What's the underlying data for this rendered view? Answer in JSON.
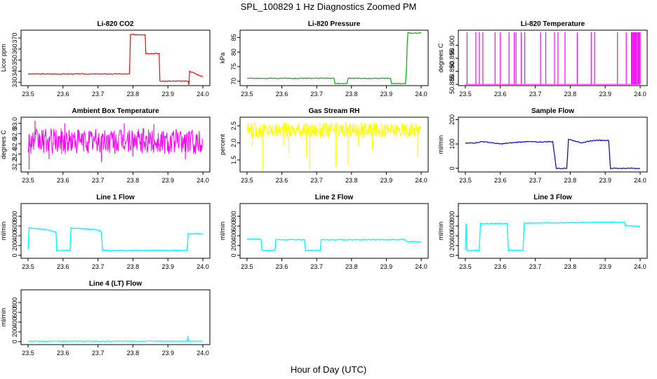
{
  "figure": {
    "title": "SPL_100829  1 Hz Diagnostics Zoomed PM",
    "xlabel": "Hour of Day (UTC)"
  },
  "chart_data": [
    {
      "id": "co2",
      "type": "line",
      "title": "Li-820 CO2",
      "ylabel": "Licor ppm",
      "color": "#ff0000",
      "xlim": [
        23.48,
        24.02
      ],
      "ylim": [
        327,
        377
      ],
      "xticks": [
        "23.5",
        "23.6",
        "23.7",
        "23.8",
        "23.9",
        "24.0"
      ],
      "yticks": [
        330,
        340,
        350,
        360,
        370
      ],
      "x": [
        23.5,
        23.79,
        23.793,
        23.835,
        23.837,
        23.875,
        23.877,
        23.958,
        23.96,
        23.962,
        24.0
      ],
      "y": [
        337.5,
        337.5,
        373,
        373,
        356,
        356,
        331,
        331,
        328,
        340,
        335
      ]
    },
    {
      "id": "pressure",
      "type": "line",
      "title": "Li-820 Pressure",
      "ylabel": "kPa",
      "color": "#00b000",
      "xlim": [
        23.48,
        24.02
      ],
      "ylim": [
        68.5,
        87.5
      ],
      "xticks": [
        "23.5",
        "23.6",
        "23.7",
        "23.8",
        "23.9",
        "24.0"
      ],
      "yticks": [
        70,
        75,
        80,
        85
      ],
      "x": [
        23.5,
        23.75,
        23.752,
        23.787,
        23.79,
        23.912,
        23.915,
        23.955,
        23.958,
        23.96,
        23.962,
        24.0
      ],
      "y": [
        71,
        71,
        69.2,
        69.2,
        71,
        71,
        69.2,
        69.2,
        75,
        83,
        86.5,
        86.5
      ]
    },
    {
      "id": "li820temp",
      "type": "line",
      "title": "Li-820 Temperature",
      "ylabel": "degrees C",
      "color": "#ff00ff",
      "xlim": [
        23.48,
        24.02
      ],
      "ylim": [
        50.8845,
        50.9058
      ],
      "xticks": [
        "23.5",
        "23.6",
        "23.7",
        "23.8",
        "23.9",
        "24.0"
      ],
      "yticks": [
        "50.885",
        "50.890",
        "50.895",
        "50.900"
      ],
      "x": [
        23.5,
        23.505,
        23.53,
        23.54,
        23.55,
        23.585,
        23.6,
        23.625,
        23.64,
        23.645,
        23.66,
        23.67,
        23.715,
        23.73,
        23.755,
        23.765,
        23.785,
        23.82,
        23.86,
        23.87,
        23.935,
        23.96,
        23.975,
        23.985,
        23.99,
        23.995,
        24.0
      ],
      "y": [
        50.885,
        50.905,
        50.905,
        50.905,
        50.905,
        50.905,
        50.905,
        50.905,
        50.905,
        50.905,
        50.905,
        50.905,
        50.905,
        50.905,
        50.905,
        50.905,
        50.905,
        50.905,
        50.905,
        50.905,
        50.905,
        50.905,
        50.905,
        50.905,
        50.905,
        50.905,
        50.905
      ]
    },
    {
      "id": "ambienttemp",
      "type": "line",
      "title": "Ambient Box Temperature",
      "ylabel": "degrees C",
      "color": "#ff00ff",
      "xlim": [
        23.48,
        24.02
      ],
      "ylim": [
        32.05,
        33.12
      ],
      "xticks": [
        "23.5",
        "23.6",
        "23.7",
        "23.8",
        "23.9",
        "24.0"
      ],
      "yticks": [
        "32.2",
        "32.4",
        "32.6",
        "32.8",
        "33.0"
      ],
      "x": [
        23.5,
        24.0
      ],
      "y": [
        32.62,
        32.62
      ],
      "band": [
        32.4,
        32.9
      ],
      "spikes_x": [
        23.503,
        23.52,
        23.56,
        23.605,
        23.71,
        23.775,
        23.8,
        23.86,
        23.95
      ],
      "spikes_y": [
        32.1,
        33.05,
        32.3,
        33.0,
        32.25,
        33.0,
        32.35,
        32.98,
        32.3
      ]
    },
    {
      "id": "rh",
      "type": "line",
      "title": "Gas Stream RH",
      "ylabel": "percent",
      "color": "#ffff00",
      "xlim": [
        23.48,
        24.02
      ],
      "ylim": [
        1.15,
        2.75
      ],
      "xticks": [
        "23.5",
        "23.6",
        "23.7",
        "23.8",
        "23.9",
        "24.0"
      ],
      "yticks": [
        "1.5",
        "2.0",
        "2.5"
      ],
      "x": [
        23.5,
        24.0
      ],
      "y": [
        2.35,
        2.35
      ],
      "band": [
        2.15,
        2.6
      ],
      "spikes_x": [
        23.515,
        23.545,
        23.605,
        23.62,
        23.67,
        23.68,
        23.755,
        23.79,
        23.82,
        23.86,
        23.99
      ],
      "spikes_y": [
        1.9,
        1.2,
        1.9,
        1.7,
        1.6,
        1.2,
        1.3,
        1.35,
        1.9,
        1.8,
        1.6
      ]
    },
    {
      "id": "sampleflow",
      "type": "line",
      "title": "Sample Flow",
      "ylabel": "ml/min",
      "color": "#0000cc",
      "xlim": [
        23.48,
        24.02
      ],
      "ylim": [
        -15,
        210
      ],
      "xticks": [
        "23.5",
        "23.6",
        "23.7",
        "23.8",
        "23.9",
        "24.0"
      ],
      "yticks": [
        0,
        100,
        200
      ],
      "x": [
        23.5,
        23.53,
        23.55,
        23.6,
        23.67,
        23.71,
        23.75,
        23.76,
        23.79,
        23.795,
        23.83,
        23.87,
        23.91,
        23.915,
        24.0
      ],
      "y": [
        103,
        105,
        110,
        100,
        110,
        108,
        110,
        0,
        0,
        120,
        105,
        115,
        115,
        0,
        0
      ]
    },
    {
      "id": "line1",
      "type": "line",
      "title": "Line 1 Flow",
      "ylabel": "ml/min",
      "color": "#00ffff",
      "xlim": [
        23.48,
        24.02
      ],
      "ylim": [
        -60,
        1060
      ],
      "xticks": [
        "23.5",
        "23.6",
        "23.7",
        "23.8",
        "23.9",
        "24.0"
      ],
      "yticks": [
        0,
        200,
        400,
        600,
        800
      ],
      "x": [
        23.5,
        23.503,
        23.56,
        23.58,
        23.582,
        23.62,
        23.623,
        23.7,
        23.71,
        23.713,
        23.955,
        23.958,
        24.0
      ],
      "y": [
        130,
        560,
        520,
        480,
        100,
        100,
        560,
        520,
        480,
        100,
        100,
        440,
        440
      ]
    },
    {
      "id": "line2",
      "type": "line",
      "title": "Line 2 Flow",
      "ylabel": "ml/min",
      "color": "#00ffff",
      "xlim": [
        23.48,
        24.02
      ],
      "ylim": [
        -60,
        1060
      ],
      "xticks": [
        "23.5",
        "23.6",
        "23.7",
        "23.8",
        "23.9",
        "24.0"
      ],
      "yticks": [
        0,
        200,
        400,
        600,
        800
      ],
      "x": [
        23.5,
        23.54,
        23.543,
        23.58,
        23.583,
        23.665,
        23.668,
        23.71,
        23.713,
        23.955,
        23.958,
        24.0
      ],
      "y": [
        330,
        330,
        100,
        100,
        320,
        320,
        100,
        100,
        320,
        320,
        280,
        280
      ]
    },
    {
      "id": "line3",
      "type": "line",
      "title": "Line 3 Flow",
      "ylabel": "ml/min",
      "color": "#00ffff",
      "xlim": [
        23.48,
        24.02
      ],
      "ylim": [
        -60,
        1060
      ],
      "xticks": [
        "23.5",
        "23.6",
        "23.7",
        "23.8",
        "23.9",
        "24.0"
      ],
      "yticks": [
        0,
        200,
        400,
        600,
        800
      ],
      "x": [
        23.5,
        23.502,
        23.505,
        23.54,
        23.543,
        23.62,
        23.623,
        23.665,
        23.668,
        23.955,
        23.958,
        24.0
      ],
      "y": [
        100,
        650,
        100,
        100,
        650,
        650,
        100,
        100,
        660,
        680,
        600,
        600
      ]
    },
    {
      "id": "line4",
      "type": "line",
      "title": "Line 4 (LT) Flow",
      "ylabel": "ml/min",
      "color": "#00ffff",
      "xlim": [
        23.48,
        24.02
      ],
      "ylim": [
        -60,
        1060
      ],
      "xticks": [
        "23.5",
        "23.6",
        "23.7",
        "23.8",
        "23.9",
        "24.0"
      ],
      "yticks": [
        0,
        200,
        400,
        600,
        800
      ],
      "x": [
        23.5,
        23.955,
        23.957,
        23.959,
        24.0
      ],
      "y": [
        10,
        10,
        120,
        10,
        10
      ]
    }
  ]
}
